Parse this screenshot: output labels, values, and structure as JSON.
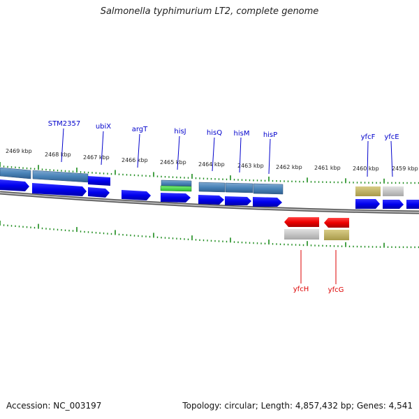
{
  "title": "Salmonella typhimurium LT2, complete genome",
  "footer": {
    "accession": "Accession: NC_003197",
    "summary": "Topology: circular; Length: 4,857,432 bp; Genes: 4,541"
  },
  "ruler_labels": [
    "2469 kbp",
    "2468 kbp",
    "2467 kbp",
    "2466 kbp",
    "2465 kbp",
    "2464 kbp",
    "2463 kbp",
    "2462 kbp",
    "2461 kbp",
    "2460 kbp",
    "2459 kbp"
  ],
  "gene_labels_forward": [
    "STM2357",
    "ubiX",
    "argT",
    "hisJ",
    "hisQ",
    "hisM",
    "hisP",
    "yfcF",
    "yfcE"
  ],
  "gene_labels_reverse": [
    "yfcH",
    "yfcG"
  ],
  "colors": {
    "cds": "#0000ee",
    "forward_label": "#0000cc",
    "reverse_label": "#dd0000",
    "rna": "#4a84b8",
    "tick": "#1a8a1a",
    "backbone": "#8a8a8a"
  }
}
